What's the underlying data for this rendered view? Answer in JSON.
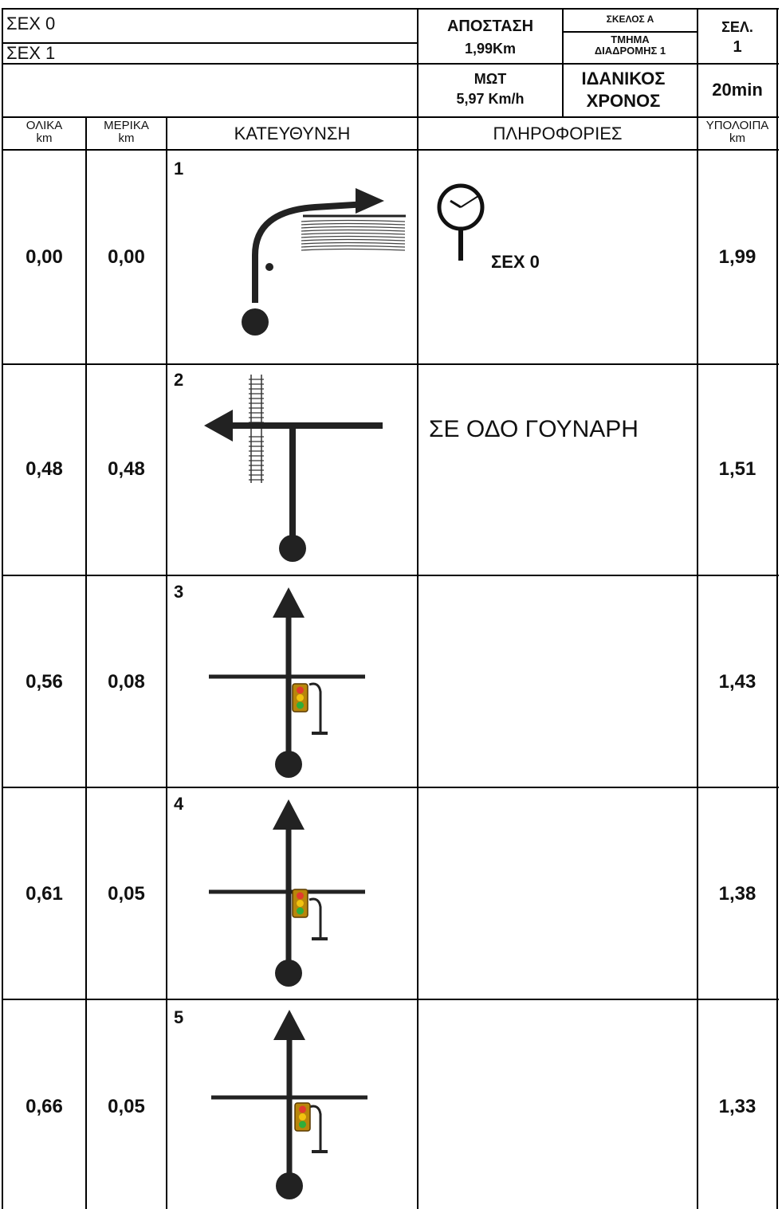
{
  "header": {
    "checkpoint_start": "ΣΕΧ 0",
    "checkpoint_end": "ΣΕΧ 1",
    "distance_label": "ΑΠΟΣΤΑΣΗ",
    "distance_value": "1,99Km",
    "leg_label": "ΣΚΕΛΟΣ Α",
    "section_label_1": "ΤΜΗΜΑ",
    "section_label_2": "ΔΙΑΔΡΟΜΗΣ 1",
    "page_label": "ΣΕΛ.",
    "page_value": "1",
    "avg_speed_label": "ΜΩΤ",
    "avg_speed_value": "5,97 Km/h",
    "ideal_time_label_1": "ΙΔΑΝΙΚΟΣ",
    "ideal_time_label_2": "ΧΡΟΝΟΣ",
    "ideal_time_value": "20min"
  },
  "columns": {
    "total": "ΟΛΙΚΑ",
    "total_unit": "km",
    "partial": "ΜΕΡΙΚΑ",
    "partial_unit": "km",
    "direction": "ΚΑΤΕΥΘΥΝΣΗ",
    "info": "ΠΛΗΡΟΦΟΡΙΕΣ",
    "remaining": "ΥΠΟΛΟΙΠΑ",
    "remaining_unit": "km"
  },
  "rows": [
    {
      "step": "1",
      "total": "0,00",
      "partial": "0,00",
      "remaining": "1,99",
      "info": "",
      "info_label": "ΣΕΧ 0",
      "diagram": "turn-right-onto-river-road-icon"
    },
    {
      "step": "2",
      "total": "0,48",
      "partial": "0,48",
      "remaining": "1,51",
      "info": "ΣΕ ΟΔΟ ΓΟΥΝΑΡΗ",
      "info_label": "",
      "diagram": "turn-left-at-railway-icon"
    },
    {
      "step": "3",
      "total": "0,56",
      "partial": "0,08",
      "remaining": "1,43",
      "info": "",
      "info_label": "",
      "diagram": "straight-at-traffic-light-icon"
    },
    {
      "step": "4",
      "total": "0,61",
      "partial": "0,05",
      "remaining": "1,38",
      "info": "",
      "info_label": "",
      "diagram": "straight-at-traffic-light-icon"
    },
    {
      "step": "5",
      "total": "0,66",
      "partial": "0,05",
      "remaining": "1,33",
      "info": "",
      "info_label": "",
      "diagram": "straight-at-traffic-light-icon"
    }
  ]
}
